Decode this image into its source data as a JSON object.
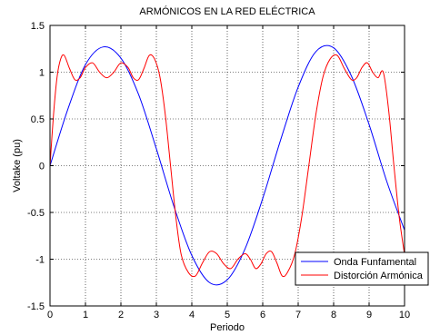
{
  "chart_data": {
    "type": "line",
    "title": "ARMÓNICOS EN LA RED ELÉCTRICA",
    "xlabel": "Periodo",
    "ylabel": "Voltake (pu)",
    "xlim": [
      0,
      10
    ],
    "ylim": [
      -1.5,
      1.5
    ],
    "xticks": [
      0,
      1,
      2,
      3,
      4,
      5,
      6,
      7,
      8,
      9,
      10
    ],
    "yticks": [
      -1.5,
      -1,
      -0.5,
      0,
      0.5,
      1,
      1.5
    ],
    "xtick_labels": [
      "0",
      "1",
      "2",
      "3",
      "4",
      "5",
      "6",
      "7",
      "8",
      "9",
      "10"
    ],
    "ytick_labels": [
      "-1.5",
      "-1",
      "-0.5",
      "0",
      "0.5",
      "1",
      "1.5"
    ],
    "grid": true,
    "legend_position": "bottom-right",
    "series": [
      {
        "name": "Onda Funfamental",
        "color": "#0000ff",
        "x": [
          0,
          0.5,
          1,
          1.5,
          2,
          2.5,
          3,
          3.5,
          4,
          4.5,
          5,
          5.5,
          6,
          6.5,
          7,
          7.5,
          8,
          8.5,
          9,
          9.5,
          10
        ],
        "y": [
          0,
          0.6,
          1.08,
          1.27,
          1.15,
          0.76,
          0.18,
          -0.44,
          -0.96,
          -1.25,
          -1.22,
          -0.89,
          -0.35,
          0.27,
          0.84,
          1.22,
          1.26,
          0.96,
          0.44,
          -0.17,
          -0.69
        ]
      },
      {
        "name": "Distorción Armónica",
        "color": "#ff0000",
        "x": [
          0,
          0.1,
          0.2,
          0.3,
          0.4,
          0.55,
          0.7,
          0.85,
          1.0,
          1.2,
          1.4,
          1.6,
          1.8,
          2.0,
          2.2,
          2.35,
          2.5,
          2.65,
          2.8,
          2.95,
          3.1,
          3.25,
          3.4,
          3.55,
          3.7,
          3.9,
          4.1,
          4.3,
          4.5,
          4.7,
          4.9,
          5.1,
          5.3,
          5.5,
          5.65,
          5.8,
          5.95,
          6.1,
          6.25,
          6.4,
          6.55,
          6.7,
          6.9,
          7.1,
          7.3,
          7.5,
          7.7,
          7.9,
          8.1,
          8.3,
          8.5,
          8.65,
          8.8,
          8.95,
          9.1,
          9.25,
          9.4,
          9.55,
          9.7,
          9.85,
          10.0
        ],
        "y": [
          0,
          0.55,
          0.95,
          1.14,
          1.18,
          1.04,
          0.92,
          0.94,
          1.05,
          1.1,
          1.0,
          0.94,
          1.0,
          1.1,
          1.05,
          0.94,
          0.92,
          1.04,
          1.18,
          1.14,
          0.95,
          0.55,
          0.0,
          -0.55,
          -0.95,
          -1.14,
          -1.18,
          -1.04,
          -0.92,
          -0.94,
          -1.05,
          -1.1,
          -1.0,
          -0.94,
          -1.0,
          -1.1,
          -1.05,
          -0.94,
          -0.92,
          -1.04,
          -1.18,
          -1.14,
          -0.95,
          -0.55,
          0.0,
          0.55,
          0.95,
          1.14,
          1.18,
          1.04,
          0.92,
          0.94,
          1.05,
          1.1,
          1.0,
          0.94,
          1.0,
          0.6,
          0.0,
          -0.55,
          -0.95
        ]
      }
    ]
  }
}
